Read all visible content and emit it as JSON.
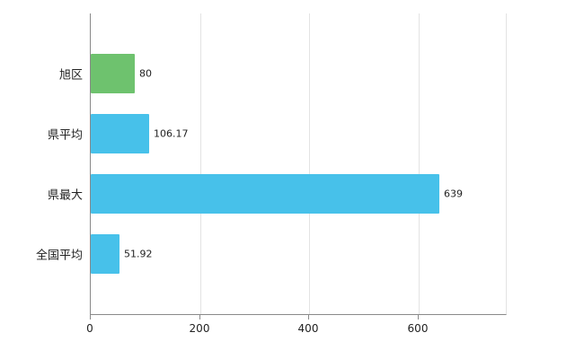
{
  "chart_data": {
    "type": "bar",
    "orientation": "horizontal",
    "title": "",
    "categories": [
      "旭区",
      "県平均",
      "県最大",
      "全国平均"
    ],
    "values": [
      80,
      106.17,
      639,
      51.92
    ],
    "value_labels": [
      "80",
      "106.17",
      "639",
      "51.92"
    ],
    "bar_colors": [
      "#6ec26e",
      "#47c1ea",
      "#47c1ea",
      "#47c1ea"
    ],
    "xlim": [
      0,
      760
    ],
    "x_ticks": [
      0,
      200,
      400,
      600
    ],
    "grid": true,
    "legend": "none"
  },
  "colors": {
    "axis": "#8a8a8a",
    "gridline": "#e3e3e3",
    "label_text": "#222222"
  }
}
